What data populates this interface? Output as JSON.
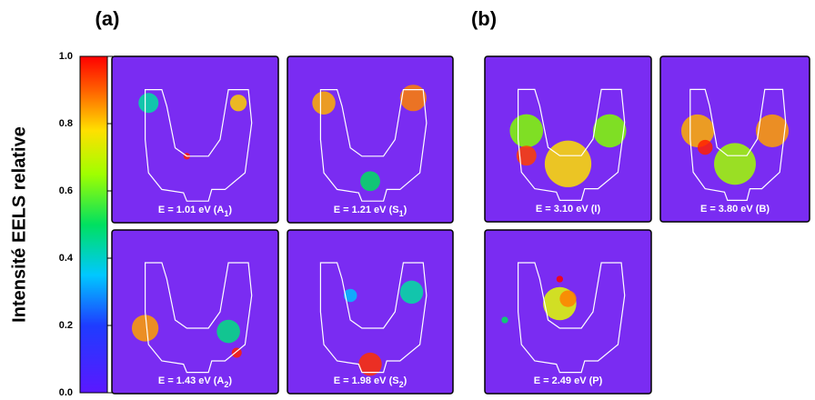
{
  "panels": [
    {
      "label": "(a)",
      "maps": [
        {
          "caption": {
            "text": "E = 1.01 eV (A",
            "sub": "1",
            "end": ")"
          }
        },
        {
          "caption": {
            "text": "E = 1.21 eV (S",
            "sub": "1",
            "end": ")"
          }
        },
        {
          "caption": {
            "text": "E = 1.43 eV (A",
            "sub": "2",
            "end": ")"
          }
        },
        {
          "caption": {
            "text": "E = 1.98 eV (S",
            "sub": "2",
            "end": ")"
          }
        }
      ]
    },
    {
      "label": "(b)",
      "maps": [
        {
          "caption": {
            "text": "E = 3.10 eV (I)"
          }
        },
        {
          "caption": {
            "text": "E = 3.80 eV (B)"
          }
        },
        {
          "caption": {
            "text": "E = 2.49 eV (P)"
          }
        }
      ]
    }
  ],
  "colorbar": {
    "label": "Intensité EELS relative",
    "lim": [
      0,
      1
    ],
    "ticks": [
      {
        "value": 0,
        "label": "0.0"
      },
      {
        "value": 0.2,
        "label": "0.2"
      },
      {
        "value": 0.4,
        "label": "0.4"
      },
      {
        "value": 0.6,
        "label": "0.6"
      },
      {
        "value": 0.8,
        "label": "0.8"
      },
      {
        "value": 1,
        "label": "1.0"
      }
    ]
  }
}
